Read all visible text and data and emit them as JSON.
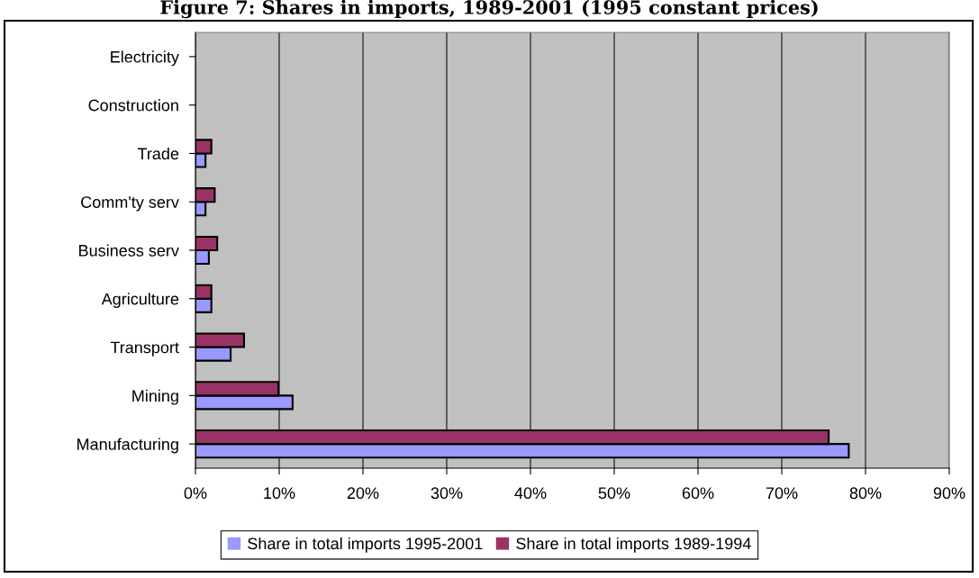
{
  "chart_data": {
    "type": "bar",
    "orientation": "horizontal",
    "title": "Figure 7: Shares in imports, 1989-2001 (1995 constant prices)",
    "categories": [
      "Electricity",
      "Construction",
      "Trade",
      "Comm'ty serv",
      "Business serv",
      "Agriculture",
      "Transport",
      "Mining",
      "Manufacturing"
    ],
    "series": [
      {
        "name": "Share in total imports 1995-2001",
        "color": "#9999ff",
        "values": [
          0,
          0,
          1.2,
          1.2,
          1.6,
          1.9,
          4.2,
          11.6,
          78.0
        ]
      },
      {
        "name": "Share in total imports 1989-1994",
        "color": "#993366",
        "values": [
          0,
          0,
          1.9,
          2.3,
          2.6,
          1.9,
          5.8,
          9.9,
          75.6
        ]
      }
    ],
    "xlim": [
      0,
      90
    ],
    "xticks": [
      {
        "value": 0,
        "label": "0%"
      },
      {
        "value": 10,
        "label": "10%"
      },
      {
        "value": 20,
        "label": "20%"
      },
      {
        "value": 30,
        "label": "30%"
      },
      {
        "value": 40,
        "label": "40%"
      },
      {
        "value": 50,
        "label": "50%"
      },
      {
        "value": 60,
        "label": "60%"
      },
      {
        "value": 70,
        "label": "70%"
      },
      {
        "value": 80,
        "label": "80%"
      },
      {
        "value": 90,
        "label": "90%"
      }
    ],
    "grid": "x",
    "legend": "bottom"
  }
}
